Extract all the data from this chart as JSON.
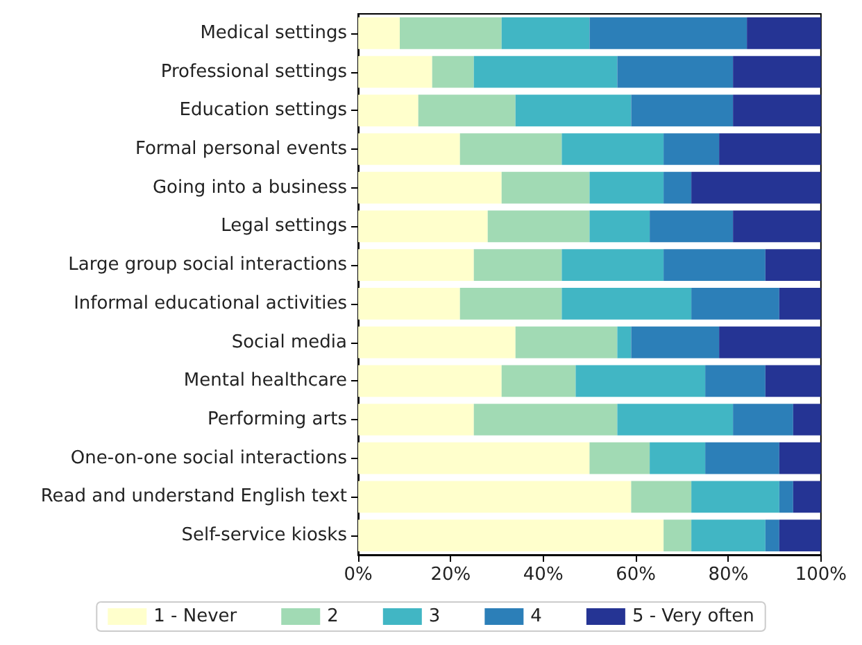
{
  "chart_data": {
    "type": "bar",
    "orientation": "horizontal",
    "stacked": true,
    "categories": [
      "Medical settings",
      "Professional settings",
      "Education settings",
      "Formal personal events",
      "Going into a business",
      "Legal settings",
      "Large group social interactions",
      "Informal educational activities",
      "Social media",
      "Mental healthcare",
      "Performing arts",
      "One-on-one social interactions",
      "Read and understand English text",
      "Self-service kiosks"
    ],
    "series": [
      {
        "name": "1 - Never",
        "color": "#ffffcc",
        "values": [
          9,
          16,
          13,
          22,
          31,
          28,
          25,
          22,
          34,
          31,
          25,
          50,
          59,
          66
        ]
      },
      {
        "name": "2",
        "color": "#a1dab4",
        "values": [
          22,
          9,
          21,
          22,
          19,
          22,
          19,
          22,
          22,
          16,
          31,
          13,
          13,
          6
        ]
      },
      {
        "name": "3",
        "color": "#41b6c4",
        "values": [
          19,
          31,
          25,
          22,
          16,
          13,
          22,
          28,
          3,
          28,
          25,
          12,
          19,
          16
        ]
      },
      {
        "name": "4",
        "color": "#2c7fb8",
        "values": [
          34,
          25,
          22,
          12,
          6,
          18,
          22,
          19,
          19,
          13,
          13,
          16,
          3,
          3
        ]
      },
      {
        "name": "5 - Very often",
        "color": "#253494",
        "values": [
          16,
          19,
          19,
          22,
          28,
          19,
          12,
          9,
          22,
          12,
          6,
          9,
          6,
          9
        ]
      }
    ],
    "xlim": [
      0,
      100
    ],
    "xticks": [
      {
        "value": 0,
        "label": "0%"
      },
      {
        "value": 20,
        "label": "20%"
      },
      {
        "value": 40,
        "label": "40%"
      },
      {
        "value": 60,
        "label": "60%"
      },
      {
        "value": 80,
        "label": "80%"
      },
      {
        "value": 100,
        "label": "100%"
      }
    ],
    "grid": false,
    "legend": "bottom"
  }
}
